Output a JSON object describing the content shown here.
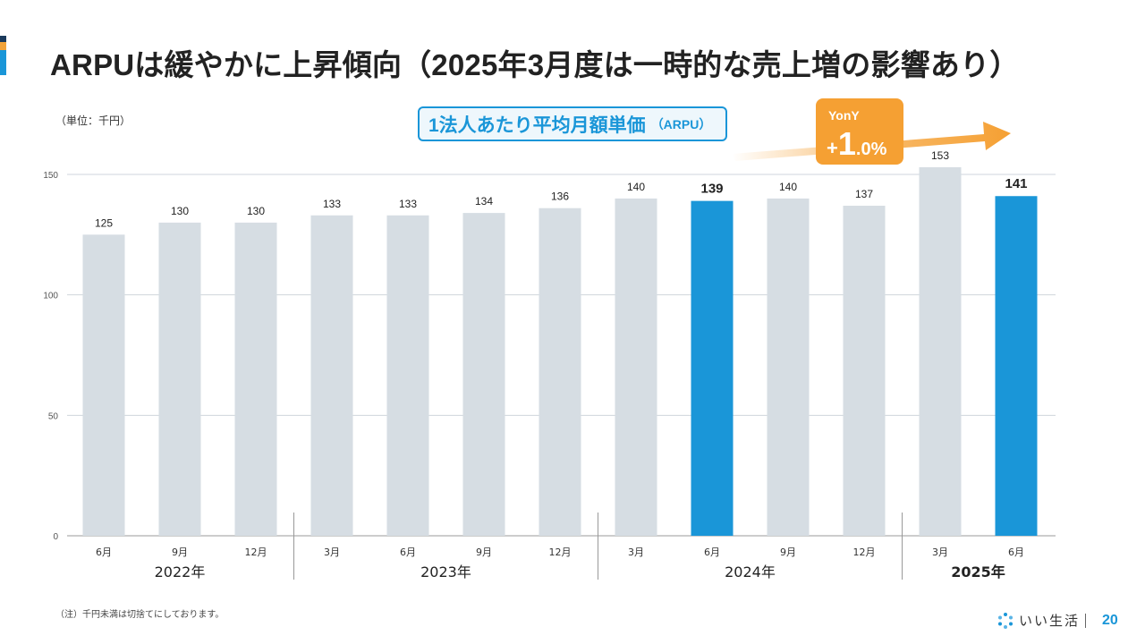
{
  "title": "ARPUは緩やかに上昇傾向（2025年3月度は一時的な売上増の影響あり）",
  "unit_note": "（単位：千円）",
  "callout": {
    "main": "1法人あたり平均月額単価",
    "sub": "（ARPU）"
  },
  "yony": {
    "label": "YonY",
    "sign": "+",
    "int": "1",
    "frac": ".0",
    "pct": "%"
  },
  "footnote": "（注）千円未満は切捨てにしております。",
  "footer": {
    "brand": "いい生活",
    "page": "20"
  },
  "colors": {
    "accent": "#1a96d8",
    "bar_default": "#d6dde3",
    "bar_highlight": "#1a96d8",
    "badge": "#f5a033",
    "gridline": "#cfd6dc"
  },
  "chart_data": {
    "type": "bar",
    "ylim": [
      0,
      150
    ],
    "yticks": [
      0,
      50,
      100,
      150
    ],
    "grid": true,
    "categories": [
      "6月",
      "9月",
      "12月",
      "3月",
      "6月",
      "9月",
      "12月",
      "3月",
      "6月",
      "9月",
      "12月",
      "3月",
      "6月"
    ],
    "values": [
      125,
      130,
      130,
      133,
      133,
      134,
      136,
      140,
      139,
      140,
      137,
      153,
      141
    ],
    "highlight": [
      false,
      false,
      false,
      false,
      false,
      false,
      false,
      false,
      true,
      false,
      false,
      false,
      true
    ],
    "year_groups": [
      {
        "label": "2022年",
        "start": 0,
        "end": 2,
        "bold": false
      },
      {
        "label": "2023年",
        "start": 3,
        "end": 6,
        "bold": false
      },
      {
        "label": "2024年",
        "start": 7,
        "end": 10,
        "bold": false
      },
      {
        "label": "2025年",
        "start": 11,
        "end": 12,
        "bold": true
      }
    ]
  }
}
